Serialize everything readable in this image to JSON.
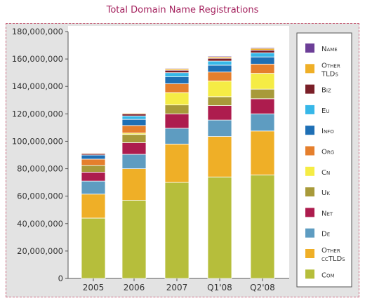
{
  "chart_data": {
    "type": "bar",
    "stacked": true,
    "title": "Total Domain Name Registrations",
    "categories": [
      "2005",
      "2006",
      "2007",
      "Q1'08",
      "Q2'08"
    ],
    "ylim": [
      0,
      180000000
    ],
    "yticks": [
      "0",
      "20,000,000",
      "40,000,000",
      "60,000,000",
      "80,000,000",
      "100,000,000",
      "120,000,000",
      "140,000,000",
      "160,000,000",
      "180,000,000"
    ],
    "grid": false,
    "legend_position": "right",
    "series": [
      {
        "name": "Com",
        "color": "#b6be3b",
        "values": [
          44000000,
          57000000,
          70000000,
          74000000,
          75500000
        ]
      },
      {
        "name": "Other ccTLDs",
        "color": "#efaf27",
        "values": [
          17500000,
          23000000,
          28000000,
          29500000,
          32000000
        ]
      },
      {
        "name": "De",
        "color": "#5e9cc1",
        "values": [
          9500000,
          10500000,
          11500000,
          12000000,
          12500000
        ]
      },
      {
        "name": "Net",
        "color": "#ad1c4e",
        "values": [
          6500000,
          8500000,
          10500000,
          10500000,
          11000000
        ]
      },
      {
        "name": "Uk",
        "color": "#a89a3a",
        "values": [
          5000000,
          6000000,
          6500000,
          6500000,
          7000000
        ]
      },
      {
        "name": "Cn",
        "color": "#f5ec45",
        "values": [
          0,
          1000000,
          9000000,
          11500000,
          11500000
        ]
      },
      {
        "name": "Org",
        "color": "#e57f2d",
        "values": [
          4500000,
          5500000,
          6500000,
          6500000,
          6800000
        ]
      },
      {
        "name": "Info",
        "color": "#1e6fb5",
        "values": [
          3000000,
          4500000,
          5000000,
          5000000,
          5200000
        ]
      },
      {
        "name": "Eu",
        "color": "#37b7e8",
        "values": [
          0,
          2500000,
          3000000,
          3000000,
          3000000
        ]
      },
      {
        "name": "Biz",
        "color": "#7a1f28",
        "values": [
          1000000,
          1500000,
          1800000,
          2000000,
          2000000
        ]
      },
      {
        "name": "Other TLDs",
        "color": "#efaf27",
        "values": [
          500000,
          600000,
          1000000,
          1000000,
          1200000
        ]
      },
      {
        "name": "Name",
        "color": "#6c3e97",
        "values": [
          300000,
          400000,
          500000,
          600000,
          700000
        ]
      }
    ],
    "legend_entries": [
      {
        "key": "name",
        "lines": [
          "Name"
        ],
        "color": "#6c3e97"
      },
      {
        "key": "other-tlds",
        "lines": [
          "Other",
          "TLDs"
        ],
        "color": "#efaf27"
      },
      {
        "key": "biz",
        "lines": [
          "Biz"
        ],
        "color": "#7a1f28"
      },
      {
        "key": "eu",
        "lines": [
          "Eu"
        ],
        "color": "#37b7e8"
      },
      {
        "key": "info",
        "lines": [
          "Info"
        ],
        "color": "#1e6fb5"
      },
      {
        "key": "org",
        "lines": [
          "Org"
        ],
        "color": "#e57f2d"
      },
      {
        "key": "cn",
        "lines": [
          "Cn"
        ],
        "color": "#f5ec45"
      },
      {
        "key": "uk",
        "lines": [
          "Uk"
        ],
        "color": "#a89a3a"
      },
      {
        "key": "net",
        "lines": [
          "Net"
        ],
        "color": "#ad1c4e"
      },
      {
        "key": "de",
        "lines": [
          "De"
        ],
        "color": "#5e9cc1"
      },
      {
        "key": "other-cctlds",
        "lines": [
          "Other",
          "ccTLDs"
        ],
        "color": "#efaf27"
      },
      {
        "key": "com",
        "lines": [
          "Com"
        ],
        "color": "#b6be3b"
      }
    ]
  }
}
